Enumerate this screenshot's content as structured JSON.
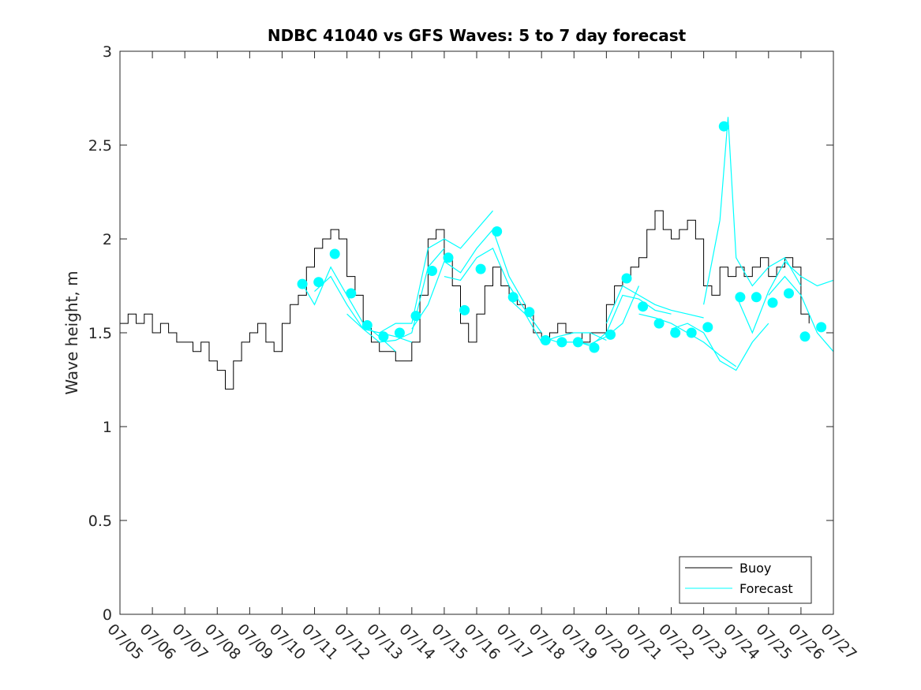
{
  "chart_data": {
    "type": "line",
    "title": "NDBC 41040 vs GFS Waves: 5 to 7 day forecast",
    "xlabel": "",
    "ylabel": "Wave height, m",
    "xlim": [
      "07/05",
      "07/27"
    ],
    "ylim": [
      0,
      3
    ],
    "x_tick_labels": [
      "07/05",
      "07/06",
      "07/07",
      "07/08",
      "07/09",
      "07/10",
      "07/11",
      "07/12",
      "07/13",
      "07/14",
      "07/15",
      "07/16",
      "07/17",
      "07/18",
      "07/19",
      "07/20",
      "07/21",
      "07/22",
      "07/23",
      "07/24",
      "07/25",
      "07/26",
      "07/27"
    ],
    "y_ticks": [
      0,
      0.5,
      1,
      1.5,
      2,
      2.5,
      3
    ],
    "y_tick_labels": [
      "0",
      "0.5",
      "1",
      "1.5",
      "2",
      "2.5",
      "3"
    ],
    "grid": false,
    "legend": {
      "position": "bottom-right",
      "entries": [
        "Buoy",
        "Forecast"
      ]
    },
    "colors": {
      "buoy": "#000000",
      "forecast": "#00FFFF",
      "marker": "#00FFFF",
      "axes": "#262626"
    },
    "series": [
      {
        "name": "Buoy",
        "points": [
          [
            "07/05 00:00",
            1.55
          ],
          [
            "07/05 06:00",
            1.6
          ],
          [
            "07/05 12:00",
            1.55
          ],
          [
            "07/05 18:00",
            1.6
          ],
          [
            "07/06 00:00",
            1.5
          ],
          [
            "07/06 06:00",
            1.55
          ],
          [
            "07/06 12:00",
            1.5
          ],
          [
            "07/06 18:00",
            1.45
          ],
          [
            "07/07 00:00",
            1.45
          ],
          [
            "07/07 06:00",
            1.4
          ],
          [
            "07/07 12:00",
            1.45
          ],
          [
            "07/07 18:00",
            1.35
          ],
          [
            "07/08 00:00",
            1.3
          ],
          [
            "07/08 06:00",
            1.2
          ],
          [
            "07/08 12:00",
            1.35
          ],
          [
            "07/08 18:00",
            1.45
          ],
          [
            "07/09 00:00",
            1.5
          ],
          [
            "07/09 06:00",
            1.55
          ],
          [
            "07/09 12:00",
            1.45
          ],
          [
            "07/09 18:00",
            1.4
          ],
          [
            "07/10 00:00",
            1.55
          ],
          [
            "07/10 06:00",
            1.65
          ],
          [
            "07/10 12:00",
            1.7
          ],
          [
            "07/10 18:00",
            1.85
          ],
          [
            "07/11 00:00",
            1.95
          ],
          [
            "07/11 06:00",
            2.0
          ],
          [
            "07/11 12:00",
            2.05
          ],
          [
            "07/11 18:00",
            2.0
          ],
          [
            "07/12 00:00",
            1.8
          ],
          [
            "07/12 06:00",
            1.7
          ],
          [
            "07/12 12:00",
            1.55
          ],
          [
            "07/12 18:00",
            1.45
          ],
          [
            "07/13 00:00",
            1.4
          ],
          [
            "07/13 06:00",
            1.4
          ],
          [
            "07/13 12:00",
            1.35
          ],
          [
            "07/13 18:00",
            1.35
          ],
          [
            "07/14 00:00",
            1.45
          ],
          [
            "07/14 06:00",
            1.7
          ],
          [
            "07/14 12:00",
            2.0
          ],
          [
            "07/14 18:00",
            2.05
          ],
          [
            "07/15 00:00",
            1.9
          ],
          [
            "07/15 06:00",
            1.75
          ],
          [
            "07/15 12:00",
            1.55
          ],
          [
            "07/15 18:00",
            1.45
          ],
          [
            "07/16 00:00",
            1.6
          ],
          [
            "07/16 06:00",
            1.75
          ],
          [
            "07/16 12:00",
            1.85
          ],
          [
            "07/16 18:00",
            1.75
          ],
          [
            "07/17 00:00",
            1.7
          ],
          [
            "07/17 06:00",
            1.65
          ],
          [
            "07/17 12:00",
            1.6
          ],
          [
            "07/17 18:00",
            1.5
          ],
          [
            "07/18 00:00",
            1.45
          ],
          [
            "07/18 06:00",
            1.5
          ],
          [
            "07/18 12:00",
            1.55
          ],
          [
            "07/18 18:00",
            1.5
          ],
          [
            "07/19 00:00",
            1.5
          ],
          [
            "07/19 06:00",
            1.45
          ],
          [
            "07/19 12:00",
            1.5
          ],
          [
            "07/19 18:00",
            1.5
          ],
          [
            "07/20 00:00",
            1.65
          ],
          [
            "07/20 06:00",
            1.75
          ],
          [
            "07/20 12:00",
            1.8
          ],
          [
            "07/20 18:00",
            1.85
          ],
          [
            "07/21 00:00",
            1.9
          ],
          [
            "07/21 06:00",
            2.05
          ],
          [
            "07/21 12:00",
            2.15
          ],
          [
            "07/21 18:00",
            2.05
          ],
          [
            "07/22 00:00",
            2.0
          ],
          [
            "07/22 06:00",
            2.05
          ],
          [
            "07/22 12:00",
            2.1
          ],
          [
            "07/22 18:00",
            2.0
          ],
          [
            "07/23 00:00",
            1.75
          ],
          [
            "07/23 06:00",
            1.7
          ],
          [
            "07/23 12:00",
            1.85
          ],
          [
            "07/23 18:00",
            1.8
          ],
          [
            "07/24 00:00",
            1.85
          ],
          [
            "07/24 06:00",
            1.8
          ],
          [
            "07/24 12:00",
            1.85
          ],
          [
            "07/24 18:00",
            1.9
          ],
          [
            "07/25 00:00",
            1.8
          ],
          [
            "07/25 06:00",
            1.85
          ],
          [
            "07/25 12:00",
            1.9
          ],
          [
            "07/25 18:00",
            1.85
          ],
          [
            "07/26 00:00",
            1.6
          ],
          [
            "07/26 06:00",
            1.55
          ]
        ]
      },
      {
        "name": "Forecast",
        "runs": [
          {
            "points": [
              [
                "07/10 15:00",
                1.76
              ],
              [
                "07/11 00:00",
                1.65
              ],
              [
                "07/11 12:00",
                1.85
              ],
              [
                "07/12 00:00",
                1.7
              ],
              [
                "07/12 12:00",
                1.55
              ],
              [
                "07/13 00:00",
                1.48
              ],
              [
                "07/13 12:00",
                1.4
              ]
            ]
          },
          {
            "points": [
              [
                "07/11 00:00",
                1.72
              ],
              [
                "07/11 12:00",
                1.8
              ],
              [
                "07/12 00:00",
                1.65
              ],
              [
                "07/12 12:00",
                1.52
              ],
              [
                "07/13 00:00",
                1.5
              ],
              [
                "07/13 12:00",
                1.48
              ],
              [
                "07/14 00:00",
                1.45
              ]
            ]
          },
          {
            "points": [
              [
                "07/12 00:00",
                1.6
              ],
              [
                "07/12 12:00",
                1.52
              ],
              [
                "07/13 00:00",
                1.45
              ],
              [
                "07/13 12:00",
                1.46
              ],
              [
                "07/14 00:00",
                1.5
              ],
              [
                "07/14 12:00",
                1.85
              ],
              [
                "07/15 00:00",
                1.95
              ]
            ]
          },
          {
            "points": [
              [
                "07/13 00:00",
                1.5
              ],
              [
                "07/13 12:00",
                1.55
              ],
              [
                "07/14 00:00",
                1.55
              ],
              [
                "07/14 12:00",
                1.95
              ],
              [
                "07/15 00:00",
                2.0
              ],
              [
                "07/15 12:00",
                1.95
              ],
              [
                "07/16 00:00",
                2.05
              ],
              [
                "07/16 12:00",
                2.15
              ]
            ]
          },
          {
            "points": [
              [
                "07/14 00:00",
                1.52
              ],
              [
                "07/14 12:00",
                1.65
              ],
              [
                "07/15 00:00",
                1.88
              ],
              [
                "07/15 12:00",
                1.82
              ],
              [
                "07/16 00:00",
                1.95
              ],
              [
                "07/16 12:00",
                2.05
              ],
              [
                "07/17 00:00",
                1.8
              ],
              [
                "07/17 12:00",
                1.65
              ]
            ]
          },
          {
            "points": [
              [
                "07/15 00:00",
                1.8
              ],
              [
                "07/15 12:00",
                1.78
              ],
              [
                "07/16 00:00",
                1.9
              ],
              [
                "07/16 12:00",
                1.95
              ],
              [
                "07/17 00:00",
                1.75
              ],
              [
                "07/17 12:00",
                1.62
              ],
              [
                "07/18 00:00",
                1.5
              ]
            ]
          },
          {
            "points": [
              [
                "07/17 00:00",
                1.68
              ],
              [
                "07/17 12:00",
                1.6
              ],
              [
                "07/18 00:00",
                1.45
              ],
              [
                "07/18 12:00",
                1.48
              ],
              [
                "07/19 00:00",
                1.5
              ],
              [
                "07/19 12:00",
                1.5
              ],
              [
                "07/20 00:00",
                1.46
              ]
            ]
          },
          {
            "points": [
              [
                "07/18 00:00",
                1.48
              ],
              [
                "07/18 12:00",
                1.45
              ],
              [
                "07/19 00:00",
                1.45
              ],
              [
                "07/19 12:00",
                1.44
              ],
              [
                "07/20 00:00",
                1.48
              ],
              [
                "07/20 12:00",
                1.55
              ],
              [
                "07/21 00:00",
                1.75
              ]
            ]
          },
          {
            "points": [
              [
                "07/19 00:00",
                1.46
              ],
              [
                "07/19 12:00",
                1.43
              ],
              [
                "07/20 00:00",
                1.5
              ],
              [
                "07/20 12:00",
                1.7
              ],
              [
                "07/21 00:00",
                1.68
              ],
              [
                "07/21 12:00",
                1.62
              ],
              [
                "07/22 00:00",
                1.6
              ]
            ]
          },
          {
            "points": [
              [
                "07/20 00:00",
                1.55
              ],
              [
                "07/20 12:00",
                1.75
              ],
              [
                "07/21 00:00",
                1.7
              ],
              [
                "07/21 12:00",
                1.65
              ],
              [
                "07/22 00:00",
                1.62
              ],
              [
                "07/22 12:00",
                1.6
              ],
              [
                "07/23 00:00",
                1.58
              ]
            ]
          },
          {
            "points": [
              [
                "07/21 00:00",
                1.6
              ],
              [
                "07/21 12:00",
                1.58
              ],
              [
                "07/22 00:00",
                1.55
              ],
              [
                "07/22 12:00",
                1.5
              ],
              [
                "07/23 00:00",
                1.45
              ],
              [
                "07/23 12:00",
                1.38
              ],
              [
                "07/24 00:00",
                1.32
              ]
            ]
          },
          {
            "points": [
              [
                "07/22 00:00",
                1.52
              ],
              [
                "07/22 12:00",
                1.55
              ],
              [
                "07/23 00:00",
                1.5
              ],
              [
                "07/23 12:00",
                1.35
              ],
              [
                "07/24 00:00",
                1.3
              ],
              [
                "07/24 12:00",
                1.45
              ],
              [
                "07/25 00:00",
                1.55
              ]
            ]
          },
          {
            "points": [
              [
                "07/23 00:00",
                1.65
              ],
              [
                "07/23 12:00",
                2.1
              ],
              [
                "07/23 18:00",
                2.65
              ],
              [
                "07/24 00:00",
                1.9
              ],
              [
                "07/24 12:00",
                1.75
              ],
              [
                "07/25 00:00",
                1.85
              ],
              [
                "07/25 12:00",
                1.9
              ],
              [
                "07/26 00:00",
                1.75
              ]
            ]
          },
          {
            "points": [
              [
                "07/24 00:00",
                1.7
              ],
              [
                "07/24 12:00",
                1.5
              ],
              [
                "07/25 00:00",
                1.72
              ],
              [
                "07/25 12:00",
                1.88
              ],
              [
                "07/26 00:00",
                1.8
              ],
              [
                "07/26 12:00",
                1.75
              ],
              [
                "07/27 00:00",
                1.78
              ]
            ]
          },
          {
            "points": [
              [
                "07/25 00:00",
                1.7
              ],
              [
                "07/25 12:00",
                1.8
              ],
              [
                "07/26 00:00",
                1.7
              ],
              [
                "07/26 12:00",
                1.5
              ],
              [
                "07/27 00:00",
                1.4
              ]
            ]
          }
        ]
      },
      {
        "name": "Forecast markers",
        "points": [
          [
            "07/10 15:00",
            1.76
          ],
          [
            "07/11 03:00",
            1.77
          ],
          [
            "07/11 15:00",
            1.92
          ],
          [
            "07/12 03:00",
            1.71
          ],
          [
            "07/12 15:00",
            1.54
          ],
          [
            "07/13 03:00",
            1.48
          ],
          [
            "07/13 15:00",
            1.5
          ],
          [
            "07/14 03:00",
            1.59
          ],
          [
            "07/14 15:00",
            1.83
          ],
          [
            "07/15 03:00",
            1.9
          ],
          [
            "07/15 15:00",
            1.62
          ],
          [
            "07/16 03:00",
            1.84
          ],
          [
            "07/16 15:00",
            2.04
          ],
          [
            "07/17 03:00",
            1.69
          ],
          [
            "07/17 15:00",
            1.61
          ],
          [
            "07/18 03:00",
            1.46
          ],
          [
            "07/18 15:00",
            1.45
          ],
          [
            "07/19 03:00",
            1.45
          ],
          [
            "07/19 15:00",
            1.42
          ],
          [
            "07/20 03:00",
            1.49
          ],
          [
            "07/20 15:00",
            1.79
          ],
          [
            "07/21 03:00",
            1.64
          ],
          [
            "07/21 15:00",
            1.55
          ],
          [
            "07/22 03:00",
            1.5
          ],
          [
            "07/22 15:00",
            1.5
          ],
          [
            "07/23 03:00",
            1.53
          ],
          [
            "07/23 15:00",
            2.6
          ],
          [
            "07/24 03:00",
            1.69
          ],
          [
            "07/24 15:00",
            1.69
          ],
          [
            "07/25 03:00",
            1.66
          ],
          [
            "07/25 15:00",
            1.71
          ],
          [
            "07/26 03:00",
            1.48
          ],
          [
            "07/26 15:00",
            1.53
          ]
        ]
      }
    ]
  }
}
